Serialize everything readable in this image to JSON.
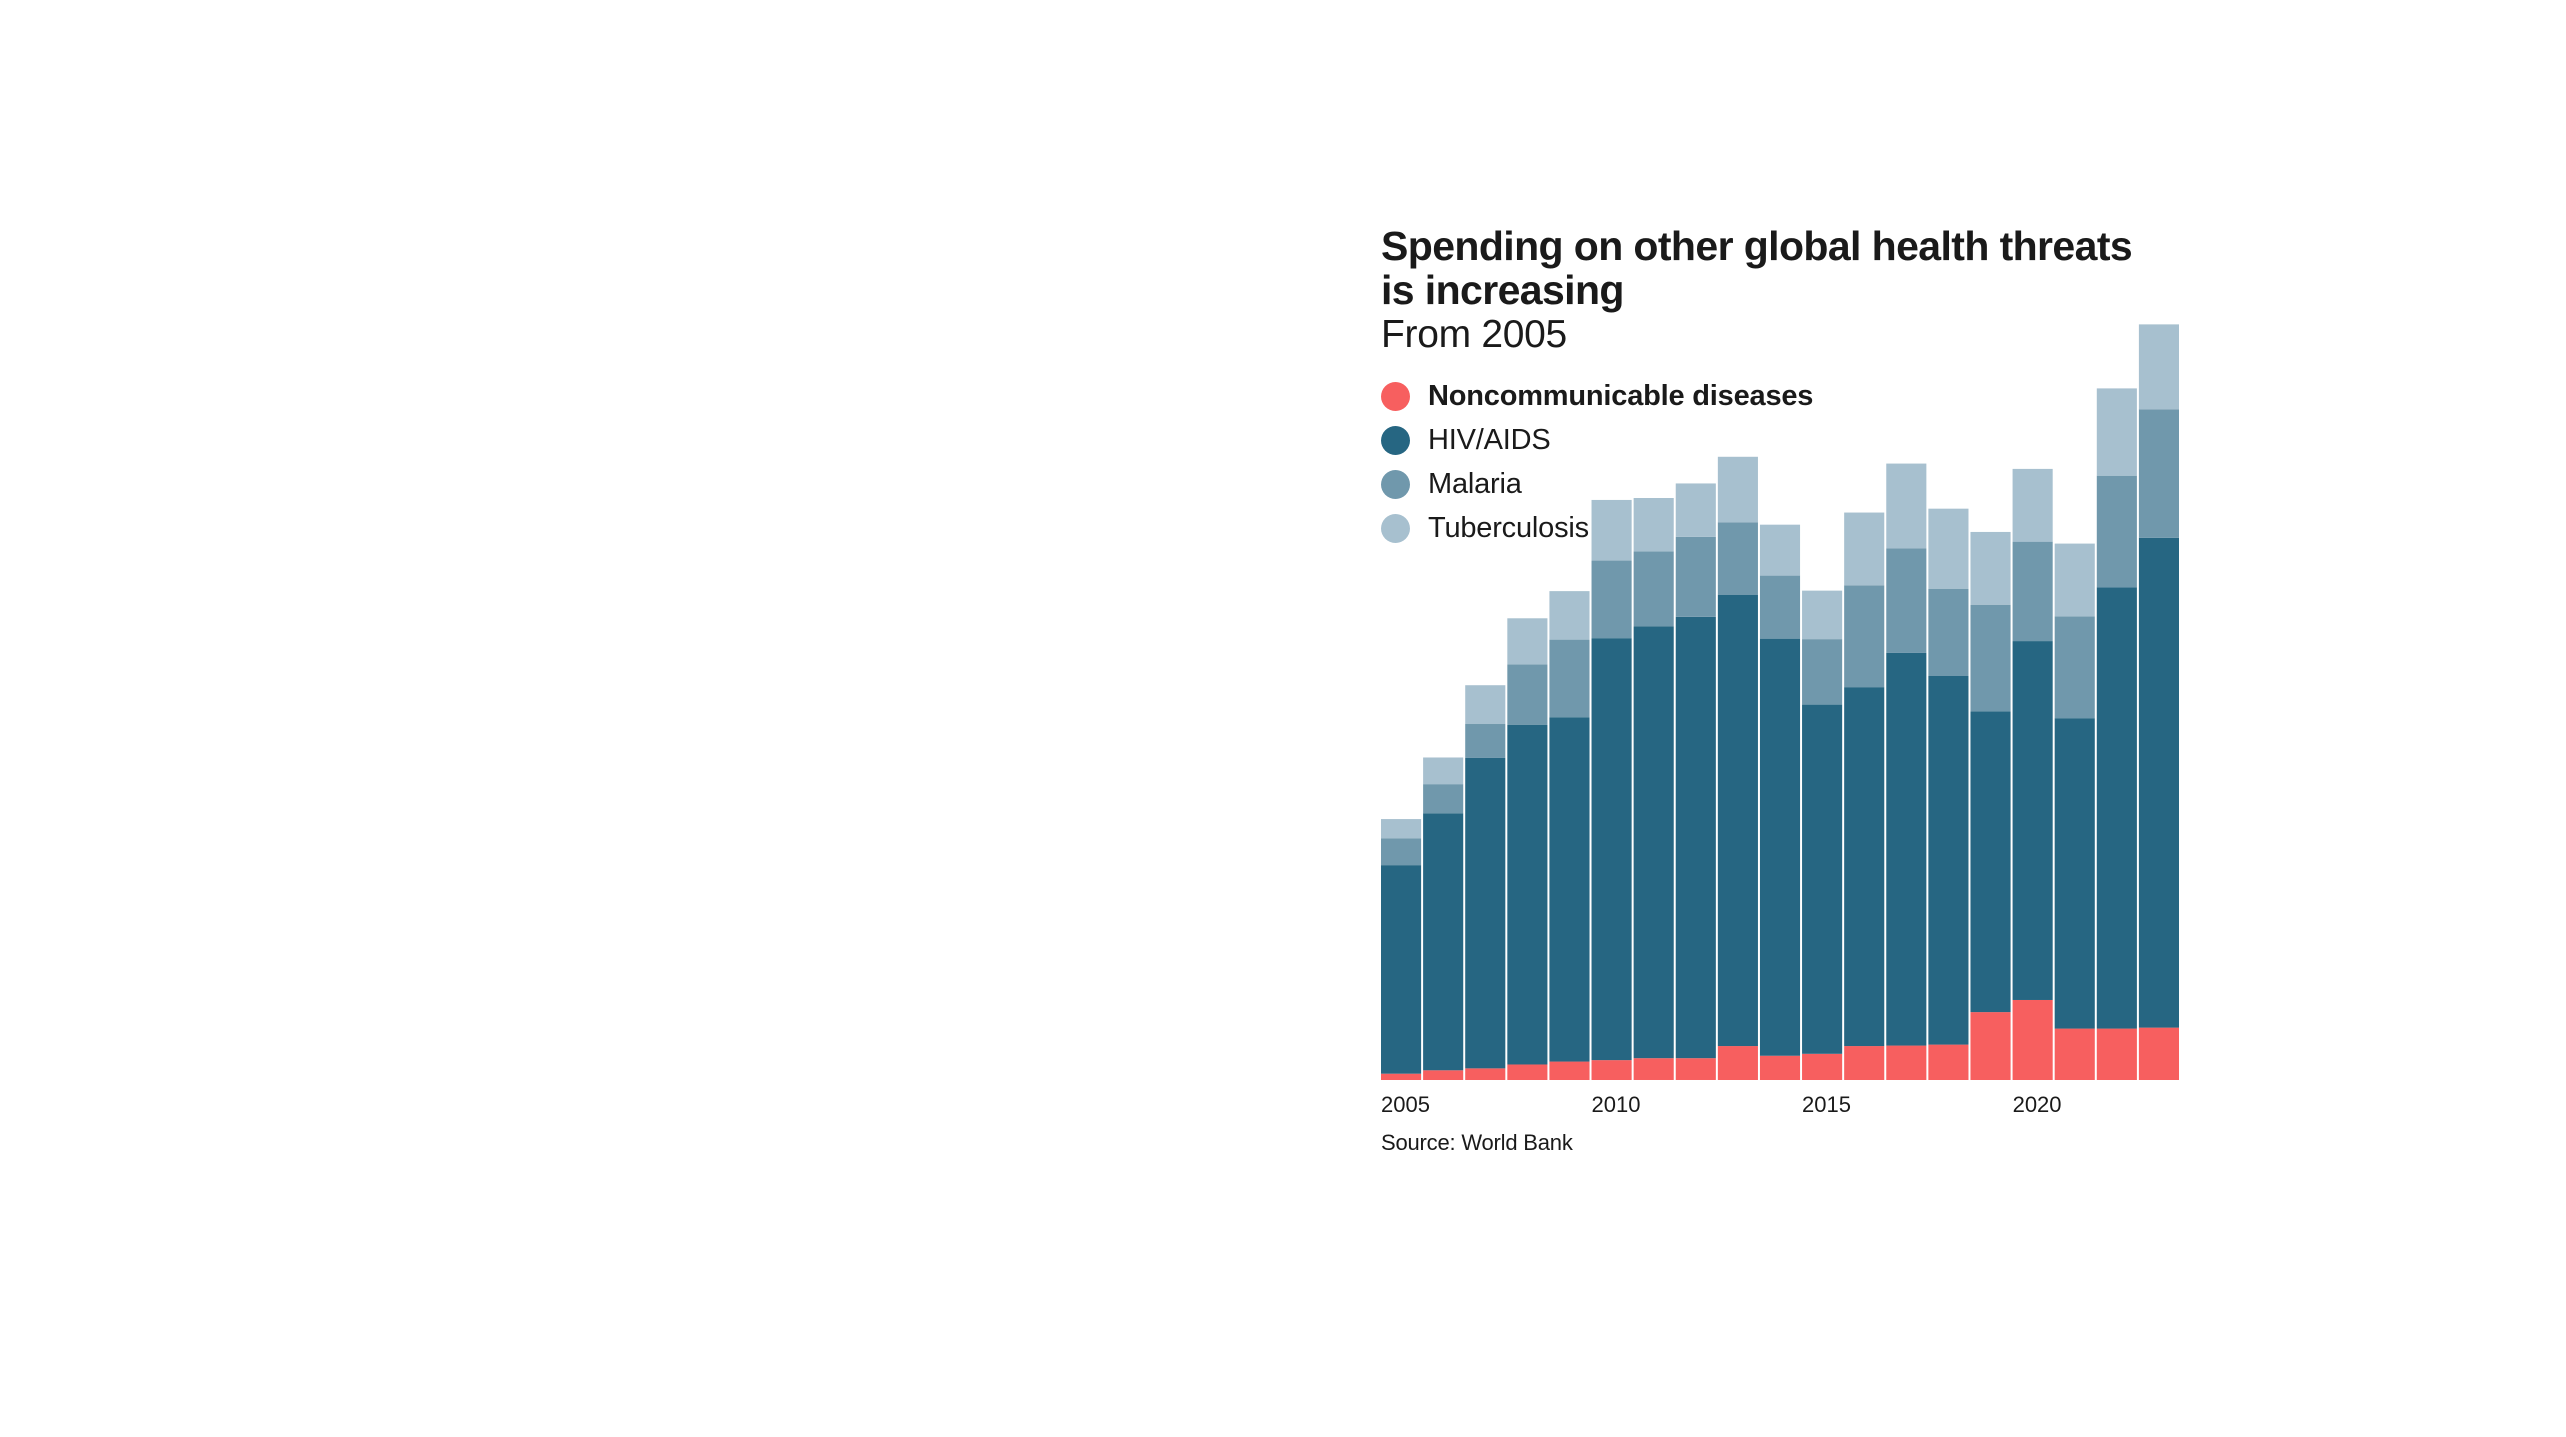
{
  "title": "Spending on other global health threats is increasing",
  "subtitle": "From 2005",
  "source": "Source: World Bank",
  "legend": [
    {
      "label": "Noncommunicable diseases",
      "color": "#f75f5f",
      "bold": true
    },
    {
      "label": "HIV/AIDS",
      "color": "#266682",
      "bold": false
    },
    {
      "label": "Malaria",
      "color": "#7098ac",
      "bold": false
    },
    {
      "label": "Tuberculosis",
      "color": "#a7c0cf",
      "bold": false
    }
  ],
  "chart_data": {
    "type": "bar",
    "stacked": true,
    "categories": [
      "2005",
      "2006",
      "2007",
      "2008",
      "2009",
      "2010",
      "2011",
      "2012",
      "2013",
      "2014",
      "2015",
      "2016",
      "2017",
      "2018",
      "2019",
      "2020",
      "2021",
      "2022",
      "2023"
    ],
    "x_tick_labels": [
      "2005",
      "2010",
      "2015",
      "2020"
    ],
    "y_axis_shown": false,
    "series": [
      {
        "name": "Noncommunicable diseases",
        "color": "#f75f5f",
        "values": [
          1.3,
          2.0,
          2.4,
          3.2,
          3.8,
          4.1,
          4.5,
          4.5,
          7.0,
          5.0,
          5.4,
          7.0,
          7.1,
          7.3,
          14.0,
          16.5,
          10.6,
          10.6,
          10.8
        ]
      },
      {
        "name": "HIV/AIDS",
        "color": "#266682",
        "values": [
          43.0,
          53.0,
          64.0,
          70.0,
          71.0,
          87.0,
          89.0,
          91.0,
          93.0,
          86.0,
          72.0,
          74.0,
          81.0,
          76.0,
          62.0,
          74.0,
          64.0,
          91.0,
          101.0
        ]
      },
      {
        "name": "Malaria",
        "color": "#7098ac",
        "values": [
          5.5,
          6.0,
          7.0,
          12.5,
          16.0,
          16.0,
          15.5,
          16.5,
          15.0,
          13.0,
          13.5,
          21.0,
          21.5,
          18.0,
          22.0,
          20.5,
          21.0,
          23.0,
          26.5
        ]
      },
      {
        "name": "Tuberculosis",
        "color": "#a7c0cf",
        "values": [
          4.0,
          5.5,
          8.0,
          9.5,
          10.0,
          12.5,
          11.0,
          11.0,
          13.5,
          10.5,
          10.0,
          15.0,
          17.5,
          16.5,
          15.0,
          15.0,
          15.0,
          18.0,
          17.5
        ]
      }
    ]
  }
}
